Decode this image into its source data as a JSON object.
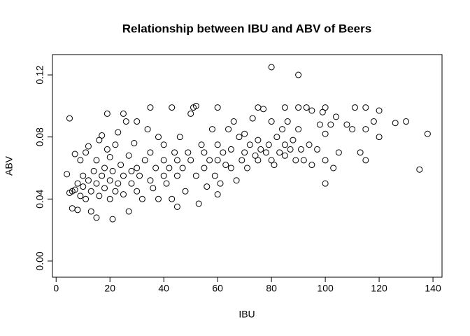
{
  "chart_data": {
    "type": "scatter",
    "title": "Relationship between IBU and ABV of Beers",
    "x_label": "IBU",
    "y_label": "ABV",
    "color": "#000000",
    "xlim": [
      -1.36,
      143.36
    ],
    "ylim": [
      -0.0104,
      0.1331
    ],
    "xticks": [
      0,
      20,
      40,
      60,
      80,
      100,
      120,
      140
    ],
    "yticks": [
      {
        "value": 0,
        "label": "0.00"
      },
      0.04,
      0.08,
      0.12
    ],
    "x": [
      4,
      5,
      5,
      6,
      6,
      7,
      7,
      8,
      8,
      9,
      9,
      10,
      10,
      11,
      11,
      12,
      12,
      13,
      13,
      14,
      15,
      15,
      15,
      16,
      16,
      17,
      17,
      18,
      18,
      19,
      19,
      20,
      20,
      20,
      21,
      21,
      22,
      22,
      23,
      23,
      24,
      25,
      25,
      25,
      26,
      27,
      27,
      28,
      28,
      29,
      30,
      30,
      30,
      31,
      32,
      33,
      34,
      35,
      35,
      35,
      36,
      37,
      38,
      38,
      40,
      40,
      40,
      41,
      42,
      43,
      43,
      44,
      45,
      45,
      45,
      46,
      47,
      48,
      49,
      50,
      50,
      51,
      52,
      52,
      53,
      54,
      55,
      55,
      56,
      57,
      58,
      59,
      60,
      60,
      60,
      60,
      61,
      62,
      63,
      64,
      65,
      65,
      66,
      67,
      68,
      69,
      70,
      70,
      71,
      72,
      73,
      74,
      75,
      75,
      75,
      76,
      77,
      78,
      79,
      80,
      80,
      80,
      81,
      82,
      83,
      84,
      85,
      85,
      85,
      86,
      87,
      88,
      89,
      90,
      90,
      90,
      91,
      92,
      93,
      94,
      95,
      95,
      97,
      98,
      99,
      100,
      100,
      100,
      100,
      102,
      103,
      104,
      105,
      108,
      110,
      111,
      113,
      115,
      115,
      115,
      118,
      120,
      120,
      126,
      130,
      135,
      138
    ],
    "y": [
      0.056,
      0.092,
      0.044,
      0.034,
      0.045,
      0.069,
      0.046,
      0.033,
      0.05,
      0.042,
      0.065,
      0.048,
      0.055,
      0.04,
      0.07,
      0.074,
      0.052,
      0.045,
      0.032,
      0.058,
      0.028,
      0.05,
      0.065,
      0.078,
      0.042,
      0.081,
      0.055,
      0.047,
      0.06,
      0.095,
      0.072,
      0.04,
      0.052,
      0.067,
      0.027,
      0.058,
      0.045,
      0.075,
      0.083,
      0.05,
      0.062,
      0.095,
      0.055,
      0.043,
      0.09,
      0.032,
      0.068,
      0.05,
      0.058,
      0.076,
      0.09,
      0.06,
      0.045,
      0.055,
      0.04,
      0.065,
      0.085,
      0.099,
      0.052,
      0.07,
      0.047,
      0.06,
      0.08,
      0.04,
      0.075,
      0.055,
      0.065,
      0.05,
      0.06,
      0.099,
      0.04,
      0.07,
      0.035,
      0.055,
      0.065,
      0.08,
      0.06,
      0.045,
      0.07,
      0.095,
      0.065,
      0.099,
      0.1,
      0.055,
      0.037,
      0.075,
      0.06,
      0.07,
      0.048,
      0.065,
      0.085,
      0.055,
      0.043,
      0.099,
      0.065,
      0.075,
      0.05,
      0.07,
      0.062,
      0.085,
      0.06,
      0.072,
      0.09,
      0.052,
      0.08,
      0.065,
      0.07,
      0.082,
      0.06,
      0.075,
      0.092,
      0.068,
      0.099,
      0.065,
      0.078,
      0.072,
      0.098,
      0.07,
      0.075,
      0.125,
      0.09,
      0.065,
      0.062,
      0.08,
      0.07,
      0.085,
      0.099,
      0.075,
      0.068,
      0.09,
      0.072,
      0.078,
      0.065,
      0.12,
      0.085,
      0.099,
      0.072,
      0.065,
      0.099,
      0.075,
      0.097,
      0.062,
      0.072,
      0.088,
      0.096,
      0.05,
      0.082,
      0.065,
      0.099,
      0.088,
      0.06,
      0.093,
      0.07,
      0.088,
      0.085,
      0.099,
      0.07,
      0.099,
      0.065,
      0.085,
      0.09,
      0.097,
      0.08,
      0.089,
      0.09,
      0.059,
      0.082
    ]
  }
}
